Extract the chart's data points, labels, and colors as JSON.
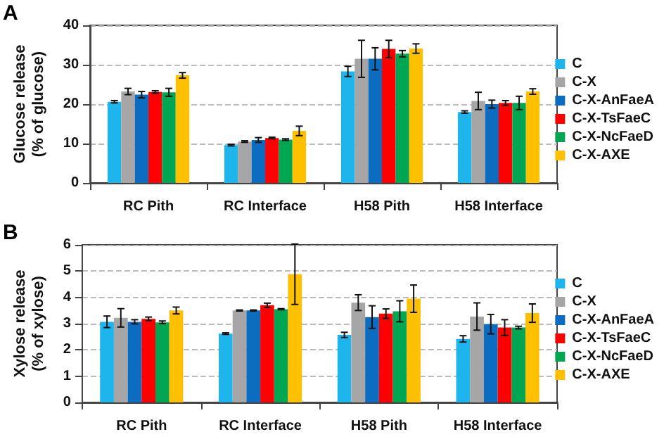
{
  "chart_data": [
    {
      "type": "bar",
      "annotations": [
        "A"
      ],
      "ylabel": "Glucose release\n(% of glucose)",
      "categories": [
        "RC Pith",
        "RC Interface",
        "H58 Pith",
        "H58 Interface"
      ],
      "ylim": [
        0,
        40
      ],
      "yticks": [
        0,
        10,
        20,
        30,
        40
      ],
      "grid": "y",
      "legend": "right",
      "series": [
        {
          "name": "C",
          "color": "#1eb4ec",
          "values": [
            20.6,
            9.6,
            28.3,
            18.0
          ],
          "errors": [
            0.3,
            0.2,
            1.3,
            0.3
          ]
        },
        {
          "name": "C-X",
          "color": "#a6a6a6",
          "values": [
            23.2,
            10.5,
            31.5,
            20.8
          ],
          "errors": [
            0.8,
            0.2,
            4.7,
            2.2
          ]
        },
        {
          "name": "C-X-AnFaeA",
          "color": "#0b6cc0",
          "values": [
            22.4,
            10.9,
            31.5,
            20.0
          ],
          "errors": [
            0.8,
            0.6,
            2.8,
            1.0
          ]
        },
        {
          "name": "C-X-TsFaeC",
          "color": "#ff0000",
          "values": [
            23.1,
            11.4,
            34.0,
            20.3
          ],
          "errors": [
            0.3,
            0.2,
            2.2,
            0.6
          ]
        },
        {
          "name": "C-X-NcFaeD",
          "color": "#00a651",
          "values": [
            23.0,
            11.0,
            32.8,
            20.3
          ],
          "errors": [
            1.0,
            0.2,
            0.8,
            1.7
          ]
        },
        {
          "name": "C-X-AXE",
          "color": "#ffc000",
          "values": [
            27.3,
            13.2,
            34.1,
            23.2
          ],
          "errors": [
            0.7,
            1.2,
            1.2,
            0.7
          ]
        }
      ]
    },
    {
      "type": "bar",
      "annotations": [
        "B"
      ],
      "ylabel": "Xylose release\n(% of xylose)",
      "categories": [
        "RC Pith",
        "RC Interface",
        "H58 Pith",
        "H58 Interface"
      ],
      "ylim": [
        0,
        6
      ],
      "yticks": [
        0,
        1,
        2,
        3,
        4,
        5,
        6
      ],
      "grid": "y",
      "legend": "right",
      "series": [
        {
          "name": "C",
          "color": "#1eb4ec",
          "values": [
            3.07,
            2.62,
            2.57,
            2.42
          ],
          "errors": [
            0.22,
            0.03,
            0.1,
            0.12
          ]
        },
        {
          "name": "C-X",
          "color": "#a6a6a6",
          "values": [
            3.22,
            3.5,
            3.8,
            3.27
          ],
          "errors": [
            0.35,
            0.02,
            0.3,
            0.52
          ]
        },
        {
          "name": "C-X-AnFaeA",
          "color": "#0b6cc0",
          "values": [
            3.07,
            3.5,
            3.25,
            2.98
          ],
          "errors": [
            0.08,
            0.02,
            0.43,
            0.37
          ]
        },
        {
          "name": "C-X-TsFaeC",
          "color": "#ff0000",
          "values": [
            3.18,
            3.7,
            3.38,
            2.85
          ],
          "errors": [
            0.07,
            0.08,
            0.18,
            0.3
          ]
        },
        {
          "name": "C-X-NcFaeD",
          "color": "#00a651",
          "values": [
            3.05,
            3.55,
            3.47,
            2.85
          ],
          "errors": [
            0.05,
            0.02,
            0.4,
            0.05
          ]
        },
        {
          "name": "C-X-AXE",
          "color": "#ffc000",
          "values": [
            3.5,
            4.88,
            3.95,
            3.4
          ],
          "errors": [
            0.13,
            1.15,
            0.52,
            0.35
          ]
        }
      ]
    }
  ]
}
